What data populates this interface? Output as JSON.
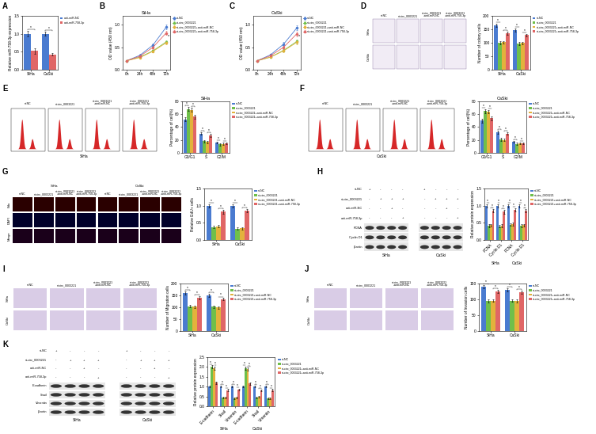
{
  "chart_data": [
    {
      "panel": "A",
      "type": "bar",
      "categories": [
        "SiHa",
        "CaSki"
      ],
      "y_label": "Relative miR-758-3p expression",
      "ylim": [
        0,
        1.5
      ],
      "yticks": [
        {
          "value": 0,
          "label": "0.0"
        },
        0.5,
        {
          "value": 1,
          "label": "1.0"
        },
        1.5
      ],
      "legend": "upper left",
      "significance": "*",
      "series": [
        {
          "name": "anti-miR-NC",
          "color": "#4a7bd0",
          "values": [
            1.0,
            1.0
          ],
          "errors": [
            0.08,
            0.06
          ]
        },
        {
          "name": "anti-miR-758-3p",
          "color": "#e06666",
          "values": [
            0.52,
            0.43
          ],
          "errors": [
            0.07,
            0.04
          ]
        }
      ]
    },
    {
      "panel": "B",
      "type": "line",
      "title": "SiHa",
      "categories": [
        "0h",
        "24h",
        "48h",
        "72h"
      ],
      "y_label": "OD value (450 nm)",
      "ylim": [
        0,
        1.2
      ],
      "yticks": [
        {
          "value": 0,
          "label": "0.0"
        },
        0.5,
        {
          "value": 1,
          "label": "1.0"
        }
      ],
      "legend": "upper left",
      "marker": "o",
      "significance": "*",
      "series": [
        {
          "name": "si-NC",
          "color": "#4a7bd0",
          "values": [
            0.2,
            0.32,
            0.55,
            0.95
          ],
          "errors": [
            0.02,
            0.03,
            0.04,
            0.05
          ]
        },
        {
          "name": "si-circ_0003221",
          "color": "#6fbf4a",
          "values": [
            0.2,
            0.28,
            0.42,
            0.62
          ],
          "errors": [
            0.02,
            0.02,
            0.03,
            0.04
          ]
        },
        {
          "name": "si-circ_0003221+anti-miR-NC",
          "color": "#e3b23c",
          "values": [
            0.2,
            0.27,
            0.41,
            0.6
          ],
          "errors": [
            0.02,
            0.02,
            0.03,
            0.04
          ]
        },
        {
          "name": "si-circ_0003221+anti-miR-758-3p",
          "color": "#e06666",
          "values": [
            0.2,
            0.3,
            0.5,
            0.82
          ],
          "errors": [
            0.02,
            0.03,
            0.04,
            0.05
          ]
        }
      ]
    },
    {
      "panel": "C",
      "type": "line",
      "title": "CaSki",
      "categories": [
        "0h",
        "24h",
        "48h",
        "72h"
      ],
      "y_label": "OD value (450 nm)",
      "ylim": [
        0,
        1.2
      ],
      "yticks": [
        {
          "value": 0,
          "label": "0.0"
        },
        0.5,
        {
          "value": 1,
          "label": "1.0"
        }
      ],
      "legend": "upper left",
      "marker": "o",
      "significance": "*",
      "series": [
        {
          "name": "si-NC",
          "color": "#4a7bd0",
          "values": [
            0.2,
            0.33,
            0.57,
            0.93
          ],
          "errors": [
            0.02,
            0.03,
            0.04,
            0.05
          ]
        },
        {
          "name": "si-circ_0003221",
          "color": "#6fbf4a",
          "values": [
            0.2,
            0.28,
            0.43,
            0.63
          ],
          "errors": [
            0.02,
            0.02,
            0.03,
            0.04
          ]
        },
        {
          "name": "si-circ_0003221+anti-miR-NC",
          "color": "#e3b23c",
          "values": [
            0.2,
            0.28,
            0.42,
            0.61
          ],
          "errors": [
            0.02,
            0.02,
            0.03,
            0.04
          ]
        },
        {
          "name": "si-circ_0003221+anti-miR-758-3p",
          "color": "#e06666",
          "values": [
            0.2,
            0.31,
            0.5,
            0.8
          ],
          "errors": [
            0.02,
            0.03,
            0.04,
            0.05
          ]
        }
      ]
    },
    {
      "panel": "D",
      "type": "bar",
      "categories": [
        "SiHa",
        "CaSki"
      ],
      "y_label": "Number of colony cells",
      "ylim": [
        0,
        200
      ],
      "yticks": [
        0,
        50,
        100,
        150,
        200
      ],
      "legend": "upper left",
      "significance": "*",
      "series": [
        {
          "name": "si-NC",
          "color": "#4a7bd0",
          "values": [
            165,
            148
          ],
          "errors": [
            6,
            6
          ]
        },
        {
          "name": "si-circ_0003221",
          "color": "#6fbf4a",
          "values": [
            100,
            97
          ],
          "errors": [
            5,
            5
          ]
        },
        {
          "name": "si-circ_0003221+anti-miR-NC",
          "color": "#e3b23c",
          "values": [
            102,
            99
          ],
          "errors": [
            5,
            5
          ]
        },
        {
          "name": "si-circ_0003221+anti-miR-758-3p",
          "color": "#e06666",
          "values": [
            135,
            128
          ],
          "errors": [
            6,
            5
          ]
        }
      ]
    },
    {
      "panel": "E",
      "type": "bar",
      "title": "SiHa",
      "categories": [
        "G0/G1",
        "S",
        "G2/M"
      ],
      "y_label": "Percentage of cell(%)",
      "ylim": [
        0,
        80
      ],
      "yticks": [
        0,
        20,
        40,
        60,
        80
      ],
      "legend": "upper left",
      "significance": "*",
      "series": [
        {
          "name": "si-NC",
          "color": "#4a7bd0",
          "values": [
            52,
            30,
            16
          ],
          "errors": [
            3,
            2,
            1.5
          ]
        },
        {
          "name": "si-circ_0003221",
          "color": "#6fbf4a",
          "values": [
            68,
            18,
            13
          ],
          "errors": [
            3,
            2,
            1.5
          ]
        },
        {
          "name": "si-circ_0003221+anti-miR-NC",
          "color": "#e3b23c",
          "values": [
            67,
            17,
            14
          ],
          "errors": [
            3,
            2,
            1.5
          ]
        },
        {
          "name": "si-circ_0003221+anti-miR-758-3p",
          "color": "#e06666",
          "values": [
            56,
            27,
            15
          ],
          "errors": [
            3,
            2,
            1.5
          ]
        }
      ]
    },
    {
      "panel": "F",
      "type": "bar",
      "title": "CaSki",
      "categories": [
        "G0/G1",
        "S",
        "G2/M"
      ],
      "y_label": "Percentage of cell(%)",
      "ylim": [
        0,
        80
      ],
      "yticks": [
        0,
        20,
        40,
        60,
        80
      ],
      "legend": "upper left",
      "significance": "*",
      "series": [
        {
          "name": "si-NC",
          "color": "#4a7bd0",
          "values": [
            50,
            32,
            17
          ],
          "errors": [
            3,
            2,
            1.5
          ]
        },
        {
          "name": "si-circ_0003221",
          "color": "#6fbf4a",
          "values": [
            65,
            21,
            14
          ],
          "errors": [
            3,
            2,
            1.5
          ]
        },
        {
          "name": "si-circ_0003221+anti-miR-NC",
          "color": "#e3b23c",
          "values": [
            64,
            20,
            15
          ],
          "errors": [
            3,
            2,
            1.5
          ]
        },
        {
          "name": "si-circ_0003221+anti-miR-758-3p",
          "color": "#e06666",
          "values": [
            54,
            30,
            15
          ],
          "errors": [
            3,
            2,
            1.5
          ]
        }
      ]
    },
    {
      "panel": "G",
      "type": "bar",
      "categories": [
        "SiHa",
        "CaSki"
      ],
      "y_label": "Relative EdU+ cells",
      "ylim": [
        0,
        1.5
      ],
      "yticks": [
        {
          "value": 0,
          "label": "0.0"
        },
        0.5,
        {
          "value": 1,
          "label": "1.0"
        },
        1.5
      ],
      "legend": "upper left",
      "significance": "*",
      "series": [
        {
          "name": "si-NC",
          "color": "#4a7bd0",
          "values": [
            1.0,
            1.0
          ],
          "errors": [
            0.05,
            0.05
          ]
        },
        {
          "name": "si-circ_0003221",
          "color": "#6fbf4a",
          "values": [
            0.38,
            0.33
          ],
          "errors": [
            0.04,
            0.04
          ]
        },
        {
          "name": "si-circ_0003221+anti-miR-NC",
          "color": "#e3b23c",
          "values": [
            0.4,
            0.34
          ],
          "errors": [
            0.04,
            0.04
          ]
        },
        {
          "name": "si-circ_0003221+anti-miR-758-3p",
          "color": "#e06666",
          "values": [
            0.82,
            0.85
          ],
          "errors": [
            0.05,
            0.05
          ]
        }
      ]
    },
    {
      "panel": "H",
      "type": "bar",
      "categories": [
        "PCNA",
        "Cyclin D1",
        "PCNA",
        "Cyclin D1"
      ],
      "group_labels": [
        "SiHa",
        "CaSki"
      ],
      "y_label": "Relative protein expression",
      "ylim": [
        0,
        1.5
      ],
      "yticks": [
        {
          "value": 0,
          "label": "0.0"
        },
        0.5,
        {
          "value": 1,
          "label": "1.0"
        },
        1.5
      ],
      "legend": "upper left",
      "significance": "*",
      "series": [
        {
          "name": "si-NC",
          "color": "#4a7bd0",
          "values": [
            1.0,
            1.0,
            1.0,
            1.0
          ],
          "errors": [
            0.05,
            0.05,
            0.05,
            0.05
          ]
        },
        {
          "name": "si-circ_0003221",
          "color": "#6fbf4a",
          "values": [
            0.42,
            0.4,
            0.45,
            0.42
          ],
          "errors": [
            0.04,
            0.04,
            0.04,
            0.04
          ]
        },
        {
          "name": "si-circ_0003221+anti-miR-NC",
          "color": "#e3b23c",
          "values": [
            0.43,
            0.42,
            0.46,
            0.43
          ],
          "errors": [
            0.04,
            0.04,
            0.04,
            0.04
          ]
        },
        {
          "name": "si-circ_0003221+anti-miR-758-3p",
          "color": "#e06666",
          "values": [
            0.85,
            0.82,
            0.88,
            0.85
          ],
          "errors": [
            0.05,
            0.05,
            0.05,
            0.05
          ]
        }
      ]
    },
    {
      "panel": "I",
      "type": "bar",
      "categories": [
        "SiHa",
        "CaSki"
      ],
      "y_label": "Number of Migration cells",
      "ylim": [
        0,
        200
      ],
      "yticks": [
        0,
        50,
        100,
        150,
        200
      ],
      "legend": "upper left",
      "significance": "*",
      "series": [
        {
          "name": "si-NC",
          "color": "#4a7bd0",
          "values": [
            160,
            150
          ],
          "errors": [
            6,
            6
          ]
        },
        {
          "name": "si-circ_0003221",
          "color": "#6fbf4a",
          "values": [
            105,
            102
          ],
          "errors": [
            5,
            5
          ]
        },
        {
          "name": "si-circ_0003221+anti-miR-NC",
          "color": "#e3b23c",
          "values": [
            103,
            100
          ],
          "errors": [
            5,
            5
          ]
        },
        {
          "name": "si-circ_0003221+anti-miR-758-3p",
          "color": "#e06666",
          "values": [
            140,
            134
          ],
          "errors": [
            6,
            5
          ]
        }
      ]
    },
    {
      "panel": "J",
      "type": "bar",
      "categories": [
        "SiHa",
        "CaSki"
      ],
      "y_label": "Number of Invasion cells",
      "ylim": [
        0,
        150
      ],
      "yticks": [
        0,
        50,
        100,
        150
      ],
      "legend": "upper left",
      "significance": "*",
      "series": [
        {
          "name": "si-NC",
          "color": "#4a7bd0",
          "values": [
            140,
            130
          ],
          "errors": [
            5,
            5
          ]
        },
        {
          "name": "si-circ_0003221",
          "color": "#6fbf4a",
          "values": [
            95,
            96
          ],
          "errors": [
            4,
            4
          ]
        },
        {
          "name": "si-circ_0003221+anti-miR-NC",
          "color": "#e3b23c",
          "values": [
            96,
            95
          ],
          "errors": [
            4,
            4
          ]
        },
        {
          "name": "si-circ_0003221+anti-miR-758-3p",
          "color": "#e06666",
          "values": [
            125,
            122
          ],
          "errors": [
            5,
            5
          ]
        }
      ]
    },
    {
      "panel": "K",
      "type": "bar",
      "categories": [
        "E-cadherin",
        "Snail",
        "Vimentin",
        "E-cadherin",
        "Snail",
        "Vimentin"
      ],
      "group_labels": [
        "SiHa",
        "CaSki"
      ],
      "y_label": "Relative protein expression",
      "ylim": [
        0,
        2.5
      ],
      "yticks": [
        {
          "value": 0,
          "label": "0.0"
        },
        0.5,
        {
          "value": 1,
          "label": "1.0"
        },
        1.5,
        {
          "value": 2,
          "label": "2.0"
        },
        2.5
      ],
      "legend": "upper left",
      "significance": "*",
      "series": [
        {
          "name": "si-NC",
          "color": "#4a7bd0",
          "values": [
            1.0,
            1.0,
            1.0,
            1.0,
            1.0,
            1.0
          ],
          "errors": [
            0.05,
            0.05,
            0.05,
            0.05,
            0.05,
            0.05
          ]
        },
        {
          "name": "si-circ_0003221",
          "color": "#6fbf4a",
          "values": [
            2.0,
            0.45,
            0.42,
            1.95,
            0.45,
            0.4
          ],
          "errors": [
            0.08,
            0.04,
            0.04,
            0.08,
            0.04,
            0.04
          ]
        },
        {
          "name": "si-circ_0003221+anti-miR-NC",
          "color": "#e3b23c",
          "values": [
            1.95,
            0.46,
            0.44,
            1.9,
            0.47,
            0.42
          ],
          "errors": [
            0.08,
            0.04,
            0.04,
            0.08,
            0.04,
            0.04
          ]
        },
        {
          "name": "si-circ_0003221+anti-miR-758-3p",
          "color": "#e06666",
          "values": [
            1.2,
            0.82,
            0.85,
            1.15,
            0.8,
            0.82
          ],
          "errors": [
            0.06,
            0.05,
            0.05,
            0.06,
            0.05,
            0.05
          ]
        }
      ]
    }
  ],
  "image_panels": {
    "D": {
      "columns": [
        "si-NC",
        "si-circ_0003221",
        "si-circ_0003221+anti-miR-NC",
        "si-circ_0003221+anti-miR-758-3p"
      ],
      "rows": [
        "SiHa",
        "CaSki"
      ]
    },
    "E": {
      "columns": [
        "si-NC",
        "si-circ_0003221",
        "si-circ_0003221+anti-miR-NC",
        "si-circ_0003221+anti-miR-758-3p"
      ],
      "caption": "SiHa"
    },
    "F": {
      "columns": [
        "si-NC",
        "si-circ_0003221",
        "si-circ_0003221+anti-miR-NC",
        "si-circ_0003221+anti-miR-758-3p"
      ],
      "caption": "CaSki"
    },
    "G": {
      "groups": [
        "SiHa",
        "CaSki"
      ],
      "columns": [
        "si-NC",
        "si-circ_0003221",
        "si-circ_0003221+anti-miR-NC",
        "si-circ_0003221+anti-miR-758-3p"
      ],
      "rows": [
        "Edu",
        "DAPI",
        "Merge"
      ]
    },
    "H": {
      "treatments": [
        {
          "label": "si-NC",
          "signs": [
            "+",
            "-",
            "-",
            "-"
          ]
        },
        {
          "label": "si-circ_0003221",
          "signs": [
            "-",
            "+",
            "+",
            "+"
          ]
        },
        {
          "label": "anti-miR-NC",
          "signs": [
            "-",
            "-",
            "+",
            "-"
          ]
        },
        {
          "label": "anti-miR-758-3p",
          "signs": [
            "-",
            "-",
            "-",
            "+"
          ]
        }
      ],
      "bands": [
        "PCNA",
        "Cyclin D1",
        "β-actin"
      ],
      "groups": [
        "SiHa",
        "CaSki"
      ]
    },
    "I": {
      "columns": [
        "si-NC",
        "si-circ_0003221",
        "si-circ_0003221+anti-miR-NC",
        "si-circ_0003221+anti-miR-758-3p"
      ],
      "rows": [
        "SiHa",
        "CaSki"
      ]
    },
    "J": {
      "columns": [
        "si-NC",
        "si-circ_0003221",
        "si-circ_0003221+anti-miR-NC",
        "si-circ_0003221+anti-miR-758-3p"
      ],
      "rows": [
        "SiHa",
        "CaSki"
      ]
    },
    "K": {
      "treatments": [
        {
          "label": "si-NC",
          "signs": [
            "+",
            "-",
            "-",
            "-"
          ]
        },
        {
          "label": "si-circ_0003221",
          "signs": [
            "-",
            "+",
            "+",
            "+"
          ]
        },
        {
          "label": "anti-miR-NC",
          "signs": [
            "-",
            "-",
            "+",
            "-"
          ]
        },
        {
          "label": "anti-miR-758-3p",
          "signs": [
            "-",
            "-",
            "-",
            "+"
          ]
        }
      ],
      "bands": [
        "E-cadherin",
        "Snail",
        "Vimentin",
        "β-actin"
      ],
      "groups": [
        "SiHa",
        "CaSki"
      ]
    }
  }
}
